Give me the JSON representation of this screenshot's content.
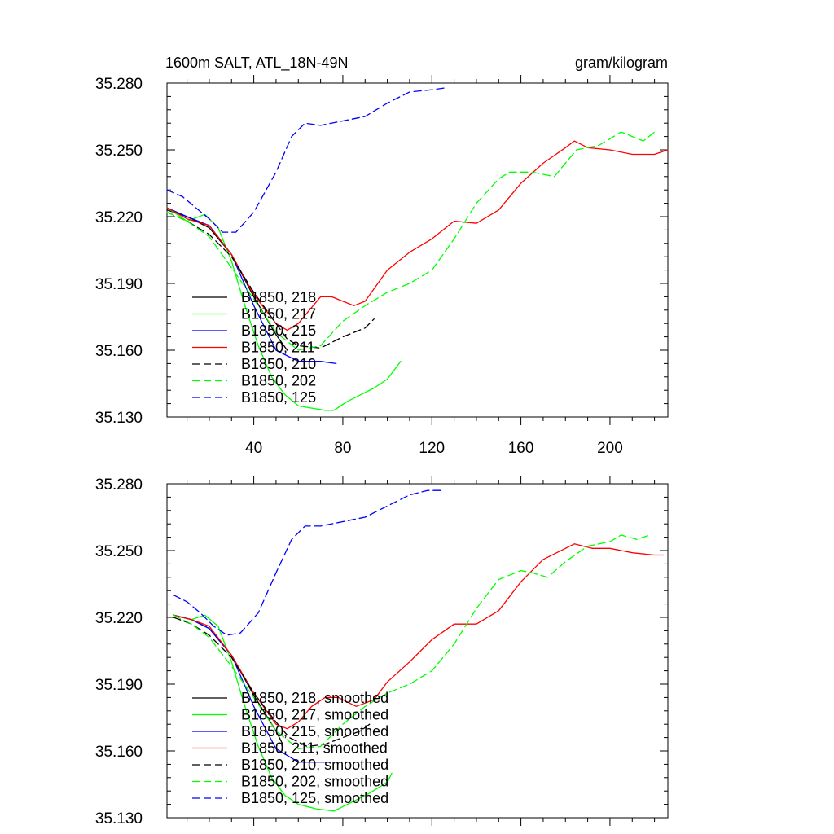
{
  "chart_data": [
    {
      "type": "line",
      "title": "1600m SALT, ATL_18N-49N",
      "units": "gram/kilogram",
      "xlim": [
        1,
        226
      ],
      "ylim": [
        35.13,
        35.28
      ],
      "xticks": [
        40,
        80,
        120,
        160,
        200
      ],
      "yticks": [
        35.13,
        35.16,
        35.19,
        35.22,
        35.25,
        35.28
      ],
      "xtick_labels": [
        "40",
        "80",
        "120",
        "160",
        "200"
      ],
      "ytick_labels": [
        "35.130",
        "35.160",
        "35.190",
        "35.220",
        "35.250",
        "35.280"
      ],
      "series": [
        {
          "name": "B1850, 218",
          "color": "#000000",
          "dash": "solid",
          "x": [
            1,
            10,
            20,
            30,
            40,
            50,
            55
          ],
          "y": [
            35.223,
            35.22,
            35.215,
            35.203,
            35.184,
            35.167,
            35.16
          ]
        },
        {
          "name": "B1850, 217",
          "color": "#00ff00",
          "dash": "solid",
          "x": [
            1,
            10,
            18,
            24,
            30,
            36,
            42,
            48,
            54,
            60,
            66,
            72,
            76,
            82,
            88,
            94,
            100,
            106
          ],
          "y": [
            35.224,
            35.218,
            35.221,
            35.215,
            35.2,
            35.18,
            35.162,
            35.148,
            35.14,
            35.135,
            35.134,
            35.133,
            35.133,
            35.137,
            35.14,
            35.143,
            35.147,
            35.155
          ]
        },
        {
          "name": "B1850, 215",
          "color": "#0000ff",
          "dash": "solid",
          "x": [
            1,
            10,
            20,
            30,
            40,
            50,
            60,
            70,
            77
          ],
          "y": [
            35.224,
            35.22,
            35.216,
            35.203,
            35.18,
            35.16,
            35.155,
            35.155,
            35.154
          ]
        },
        {
          "name": "B1850, 211",
          "color": "#ff0000",
          "dash": "solid",
          "x": [
            1,
            10,
            20,
            30,
            40,
            50,
            55,
            60,
            65,
            70,
            75,
            80,
            85,
            90,
            100,
            110,
            120,
            130,
            140,
            150,
            160,
            170,
            180,
            184,
            190,
            200,
            210,
            220,
            226
          ],
          "y": [
            35.224,
            35.219,
            35.216,
            35.203,
            35.185,
            35.172,
            35.169,
            35.172,
            35.178,
            35.184,
            35.184,
            35.182,
            35.18,
            35.182,
            35.196,
            35.204,
            35.21,
            35.218,
            35.217,
            35.223,
            35.235,
            35.244,
            35.251,
            35.254,
            35.251,
            35.25,
            35.248,
            35.248,
            35.25
          ]
        },
        {
          "name": "B1850, 210",
          "color": "#000000",
          "dash": "dashed",
          "x": [
            1,
            10,
            20,
            30,
            40,
            50,
            55,
            60,
            70,
            80,
            90,
            94
          ],
          "y": [
            35.222,
            35.218,
            35.212,
            35.202,
            35.186,
            35.172,
            35.165,
            35.162,
            35.161,
            35.166,
            35.17,
            35.174
          ]
        },
        {
          "name": "B1850, 202",
          "color": "#00ff00",
          "dash": "dashed",
          "x": [
            1,
            10,
            20,
            30,
            40,
            50,
            60,
            70,
            80,
            90,
            100,
            110,
            120,
            130,
            140,
            150,
            155,
            165,
            175,
            185,
            195,
            205,
            215,
            220
          ],
          "y": [
            35.222,
            35.218,
            35.211,
            35.197,
            35.183,
            35.168,
            35.16,
            35.162,
            35.173,
            35.18,
            35.186,
            35.19,
            35.196,
            35.21,
            35.226,
            35.237,
            35.24,
            35.24,
            35.238,
            35.25,
            35.252,
            35.258,
            35.254,
            35.258
          ]
        },
        {
          "name": "B1850, 125",
          "color": "#0000ff",
          "dash": "dashed",
          "x": [
            1,
            8,
            14,
            20,
            26,
            32,
            40,
            50,
            57,
            63,
            70,
            80,
            90,
            100,
            110,
            120,
            127
          ],
          "y": [
            35.232,
            35.229,
            35.224,
            35.219,
            35.213,
            35.213,
            35.222,
            35.24,
            35.256,
            35.262,
            35.261,
            35.263,
            35.265,
            35.271,
            35.276,
            35.277,
            35.278
          ]
        }
      ]
    },
    {
      "type": "line",
      "title": "",
      "xlim": [
        1,
        226
      ],
      "ylim": [
        35.13,
        35.28
      ],
      "xticks": [
        40,
        80,
        120,
        160,
        200
      ],
      "yticks": [
        35.13,
        35.16,
        35.19,
        35.22,
        35.25,
        35.28
      ],
      "ytick_labels": [
        "35.130",
        "35.160",
        "35.190",
        "35.220",
        "35.250",
        "35.280"
      ],
      "series": [
        {
          "name": "B1850, 218, smoothed",
          "color": "#000000",
          "dash": "solid",
          "x": [
            4,
            12,
            20,
            30,
            40,
            50,
            53
          ],
          "y": [
            35.221,
            35.219,
            35.215,
            35.203,
            35.185,
            35.169,
            35.163
          ]
        },
        {
          "name": "B1850, 217, smoothed",
          "color": "#00ff00",
          "dash": "solid",
          "x": [
            4,
            12,
            18,
            24,
            30,
            36,
            42,
            48,
            54,
            60,
            68,
            76,
            84,
            92,
            100,
            102
          ],
          "y": [
            35.221,
            35.219,
            35.221,
            35.216,
            35.2,
            35.18,
            35.162,
            35.148,
            35.14,
            35.136,
            35.134,
            35.133,
            35.137,
            35.141,
            35.146,
            35.15
          ]
        },
        {
          "name": "B1850, 215, smoothed",
          "color": "#0000ff",
          "dash": "solid",
          "x": [
            4,
            12,
            20,
            30,
            40,
            50,
            60,
            70,
            74
          ],
          "y": [
            35.221,
            35.219,
            35.215,
            35.203,
            35.18,
            35.161,
            35.155,
            35.155,
            35.155
          ]
        },
        {
          "name": "B1850, 211, smoothed",
          "color": "#ff0000",
          "dash": "solid",
          "x": [
            4,
            12,
            20,
            30,
            40,
            50,
            55,
            60,
            66,
            72,
            78,
            86,
            94,
            100,
            110,
            120,
            130,
            140,
            150,
            160,
            170,
            180,
            184,
            192,
            200,
            210,
            220,
            224
          ],
          "y": [
            35.221,
            35.219,
            35.216,
            35.203,
            35.186,
            35.172,
            35.17,
            35.173,
            35.18,
            35.184,
            35.184,
            35.18,
            35.183,
            35.191,
            35.2,
            35.21,
            35.217,
            35.217,
            35.223,
            35.236,
            35.246,
            35.251,
            35.253,
            35.251,
            35.251,
            35.249,
            35.248,
            35.248
          ]
        },
        {
          "name": "B1850, 210, smoothed",
          "color": "#000000",
          "dash": "dashed",
          "x": [
            4,
            12,
            20,
            30,
            40,
            50,
            56,
            64,
            72,
            80,
            88,
            92
          ],
          "y": [
            35.22,
            35.217,
            35.212,
            35.202,
            35.186,
            35.173,
            35.166,
            35.162,
            35.163,
            35.166,
            35.169,
            35.172
          ]
        },
        {
          "name": "B1850, 202, smoothed",
          "color": "#00ff00",
          "dash": "dashed",
          "x": [
            4,
            12,
            20,
            30,
            40,
            50,
            60,
            70,
            80,
            90,
            100,
            110,
            120,
            130,
            140,
            150,
            160,
            165,
            172,
            180,
            190,
            200,
            205,
            212,
            218
          ],
          "y": [
            35.221,
            35.217,
            35.211,
            35.198,
            35.184,
            35.169,
            35.161,
            35.162,
            35.172,
            35.18,
            35.186,
            35.19,
            35.196,
            35.208,
            35.224,
            35.237,
            35.241,
            35.24,
            35.238,
            35.245,
            35.252,
            35.254,
            35.257,
            35.255,
            35.257
          ]
        },
        {
          "name": "B1850, 125, smoothed",
          "color": "#0000ff",
          "dash": "dashed",
          "x": [
            4,
            10,
            16,
            22,
            28,
            34,
            42,
            50,
            57,
            63,
            70,
            80,
            90,
            100,
            110,
            118,
            124
          ],
          "y": [
            35.23,
            35.227,
            35.222,
            35.216,
            35.212,
            35.213,
            35.222,
            35.24,
            35.255,
            35.261,
            35.261,
            35.263,
            35.265,
            35.27,
            35.275,
            35.277,
            35.277
          ]
        }
      ]
    }
  ]
}
